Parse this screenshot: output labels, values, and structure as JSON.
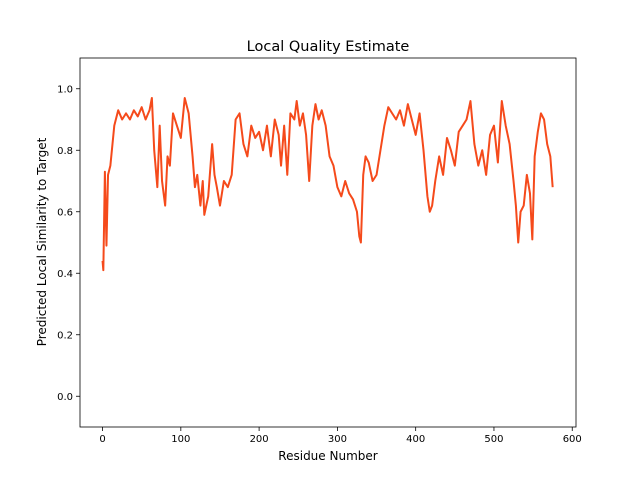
{
  "chart_data": {
    "type": "line",
    "title": "Local Quality Estimate",
    "xlabel": "Residue Number",
    "ylabel": "Predicted Local Similarity to Target",
    "x": [
      0,
      1,
      3,
      5,
      7,
      10,
      15,
      20,
      25,
      30,
      35,
      40,
      45,
      50,
      55,
      60,
      63,
      66,
      70,
      73,
      76,
      80,
      83,
      86,
      90,
      95,
      100,
      105,
      110,
      115,
      118,
      121,
      125,
      128,
      130,
      135,
      140,
      143,
      146,
      150,
      155,
      160,
      165,
      170,
      175,
      180,
      185,
      190,
      195,
      200,
      205,
      210,
      215,
      220,
      225,
      228,
      232,
      236,
      240,
      245,
      248,
      252,
      256,
      260,
      264,
      268,
      272,
      276,
      280,
      285,
      290,
      295,
      300,
      305,
      310,
      315,
      320,
      325,
      328,
      330,
      333,
      336,
      340,
      345,
      350,
      355,
      360,
      365,
      370,
      375,
      380,
      385,
      390,
      395,
      400,
      405,
      410,
      415,
      418,
      421,
      425,
      430,
      435,
      440,
      445,
      450,
      455,
      460,
      465,
      470,
      475,
      480,
      485,
      490,
      495,
      500,
      505,
      510,
      515,
      520,
      525,
      528,
      531,
      534,
      538,
      542,
      546,
      549,
      552,
      556,
      560,
      564,
      568,
      572,
      575
    ],
    "series": [
      {
        "color": "#f54a1b",
        "values": [
          0.44,
          0.41,
          0.73,
          0.49,
          0.72,
          0.75,
          0.88,
          0.93,
          0.9,
          0.92,
          0.9,
          0.93,
          0.91,
          0.94,
          0.9,
          0.93,
          0.97,
          0.8,
          0.68,
          0.88,
          0.7,
          0.62,
          0.78,
          0.75,
          0.92,
          0.88,
          0.84,
          0.97,
          0.92,
          0.78,
          0.68,
          0.72,
          0.62,
          0.7,
          0.59,
          0.65,
          0.82,
          0.72,
          0.68,
          0.62,
          0.7,
          0.68,
          0.72,
          0.9,
          0.92,
          0.82,
          0.78,
          0.88,
          0.84,
          0.86,
          0.8,
          0.88,
          0.78,
          0.9,
          0.85,
          0.75,
          0.88,
          0.72,
          0.92,
          0.9,
          0.96,
          0.88,
          0.92,
          0.85,
          0.7,
          0.88,
          0.95,
          0.9,
          0.93,
          0.88,
          0.78,
          0.75,
          0.68,
          0.65,
          0.7,
          0.66,
          0.64,
          0.6,
          0.52,
          0.5,
          0.72,
          0.78,
          0.76,
          0.7,
          0.72,
          0.8,
          0.88,
          0.94,
          0.92,
          0.9,
          0.93,
          0.88,
          0.95,
          0.9,
          0.85,
          0.92,
          0.8,
          0.65,
          0.6,
          0.62,
          0.7,
          0.78,
          0.72,
          0.84,
          0.8,
          0.75,
          0.86,
          0.88,
          0.9,
          0.96,
          0.82,
          0.75,
          0.8,
          0.72,
          0.85,
          0.88,
          0.76,
          0.96,
          0.88,
          0.82,
          0.7,
          0.62,
          0.5,
          0.6,
          0.62,
          0.72,
          0.66,
          0.51,
          0.78,
          0.86,
          0.92,
          0.9,
          0.82,
          0.78,
          0.68
        ]
      }
    ],
    "xlim": [
      -28.8,
      604.8
    ],
    "ylim": [
      -0.1,
      1.1
    ],
    "xticks": [
      0,
      100,
      200,
      300,
      400,
      500,
      600
    ],
    "yticks": [
      {
        "value": 0.0,
        "label": "0.0"
      },
      0.2,
      0.4,
      0.6,
      0.8,
      {
        "value": 1.0,
        "label": "1.0"
      }
    ]
  }
}
